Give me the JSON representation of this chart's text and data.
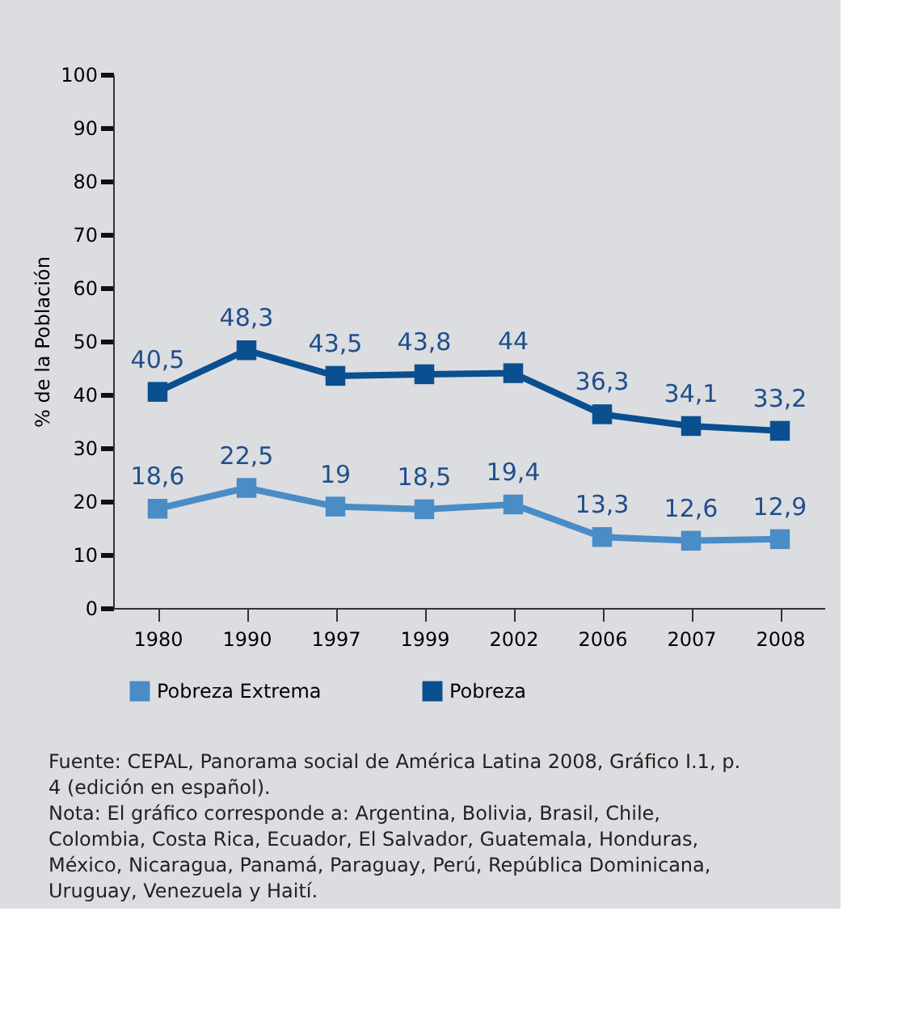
{
  "chart_data": {
    "type": "line",
    "ylabel": "% de la Población",
    "categories": [
      "1980",
      "1990",
      "1997",
      "1999",
      "2002",
      "2006",
      "2007",
      "2008"
    ],
    "series": [
      {
        "name": "Pobreza Extrema",
        "color": "#4a8cc6",
        "values": [
          18.6,
          22.5,
          19,
          18.5,
          19.4,
          13.3,
          12.6,
          12.9
        ],
        "value_labels": [
          "18,6",
          "22,5",
          "19",
          "18,5",
          "19,4",
          "13,3",
          "12,6",
          "12,9"
        ]
      },
      {
        "name": "Pobreza",
        "color": "#0a4f8f",
        "values": [
          40.5,
          48.3,
          43.5,
          43.8,
          44,
          36.3,
          34.1,
          33.2
        ],
        "value_labels": [
          "40,5",
          "48,3",
          "43,5",
          "43,8",
          "44",
          "36,3",
          "34,1",
          "33,2"
        ]
      }
    ],
    "ylim": [
      0,
      100
    ],
    "yticks": [
      0,
      10,
      20,
      30,
      40,
      50,
      60,
      70,
      80,
      90,
      100
    ],
    "legend": "bottom",
    "marker": "square",
    "line_style": "solid",
    "annotations": [
      "Fuente: CEPAL, Panorama social de América Latina 2008, Gráfico I.1, p. 4 (edición en español).",
      "Nota: El gráfico corresponde a: Argentina, Bolivia, Brasil, Chile, Colombia, Costa Rica, Ecuador, El Salvador, Guatemala, Honduras, México, Nicaragua, Panamá, Paraguay, Perú, República Dominicana, Uruguay, Venezuela y Haití."
    ]
  }
}
